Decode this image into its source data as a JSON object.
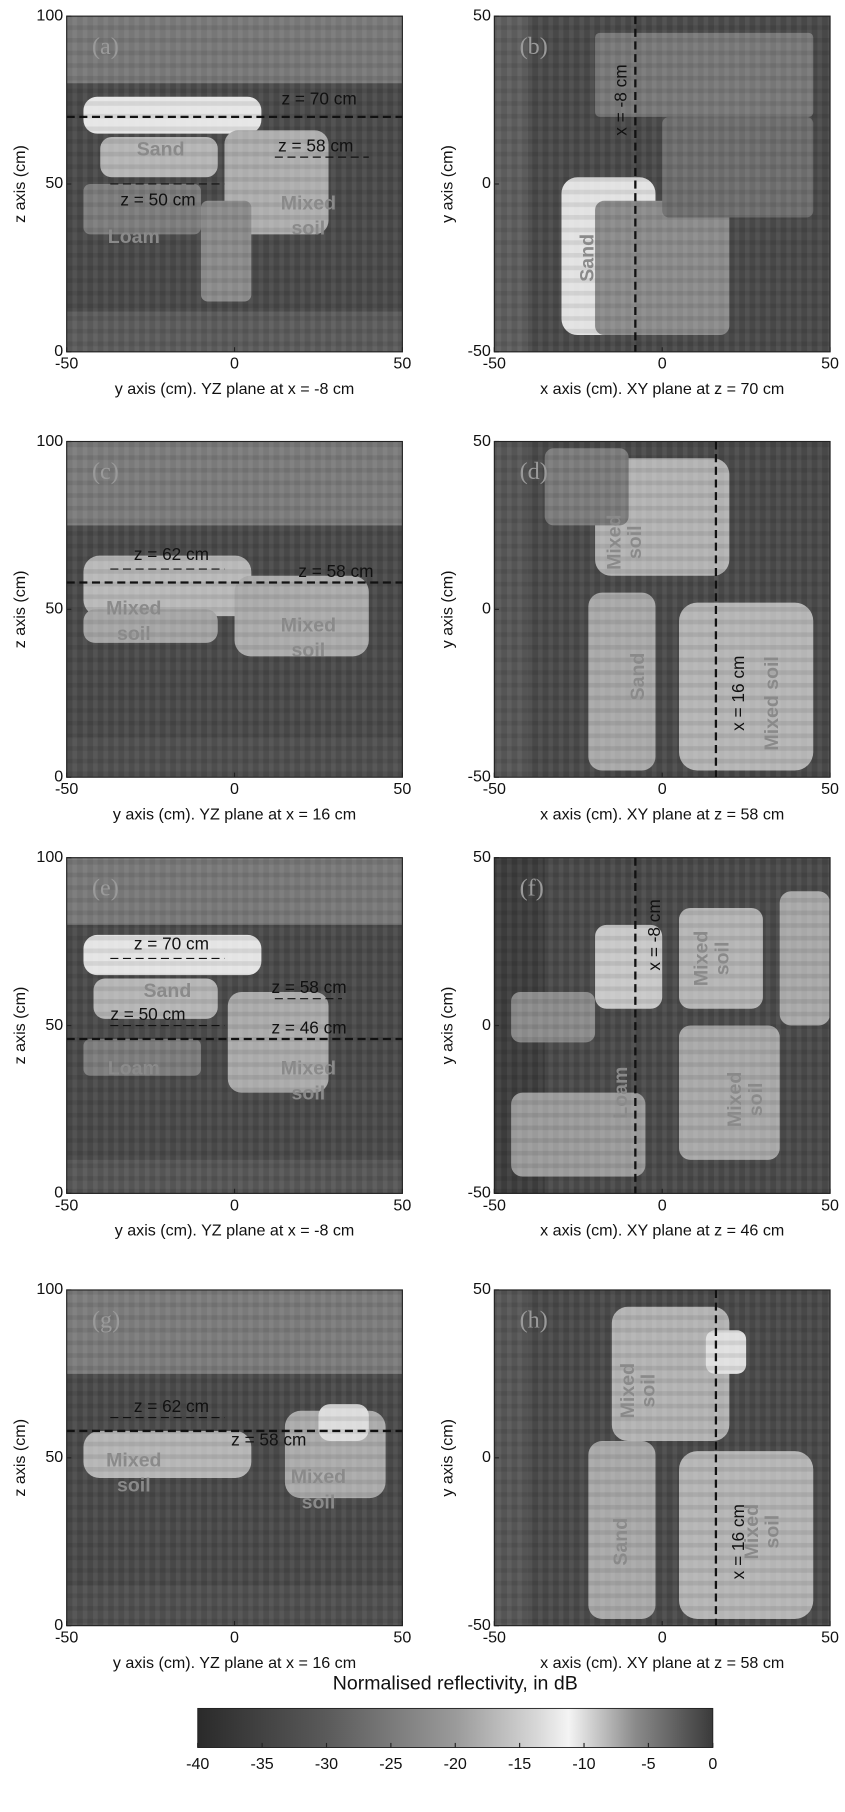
{
  "chart_data": [
    {
      "type": "heatmap",
      "panel_label": "(a)",
      "xlabel": "y axis (cm). YZ plane at x = -8 cm",
      "ylabel": "z axis (cm)",
      "xlim": [
        -50,
        50
      ],
      "ylim": [
        0,
        100
      ],
      "xticks": [
        -50,
        0,
        50
      ],
      "yticks": [
        0,
        50,
        100
      ],
      "hlines": [
        {
          "value": 70,
          "label": "z = 70 cm"
        },
        {
          "value": 58,
          "label": "z = 58 cm"
        },
        {
          "value": 50,
          "label": "z = 50 cm"
        }
      ],
      "regions": [
        [
          "Sand"
        ],
        [
          "Loam"
        ],
        [
          "Mixed",
          "soil"
        ]
      ]
    },
    {
      "type": "heatmap",
      "panel_label": "(b)",
      "xlabel": "x axis (cm). XY plane at z = 70 cm",
      "ylabel": "y axis (cm)",
      "xlim": [
        -50,
        50
      ],
      "ylim": [
        -50,
        50
      ],
      "xticks": [
        -50,
        0,
        50
      ],
      "yticks": [
        -50,
        0,
        50
      ],
      "vlines": [
        {
          "value": -8,
          "label": "x = -8 cm"
        }
      ],
      "regions": [
        [
          "Sand"
        ]
      ]
    },
    {
      "type": "heatmap",
      "panel_label": "(c)",
      "xlabel": "y axis (cm). YZ plane at x = 16 cm",
      "ylabel": "z axis (cm)",
      "xlim": [
        -50,
        50
      ],
      "ylim": [
        0,
        100
      ],
      "xticks": [
        -50,
        0,
        50
      ],
      "yticks": [
        0,
        50,
        100
      ],
      "hlines": [
        {
          "value": 62,
          "label": "z = 62 cm"
        },
        {
          "value": 58,
          "label": "z = 58 cm"
        }
      ],
      "regions": [
        [
          "Mixed",
          "soil"
        ],
        [
          "Mixed",
          "soil"
        ]
      ]
    },
    {
      "type": "heatmap",
      "panel_label": "(d)",
      "xlabel": "x axis (cm). XY plane at z = 58 cm",
      "ylabel": "y axis (cm)",
      "xlim": [
        -50,
        50
      ],
      "ylim": [
        -50,
        50
      ],
      "xticks": [
        -50,
        0,
        50
      ],
      "yticks": [
        -50,
        0,
        50
      ],
      "vlines": [
        {
          "value": 16,
          "label": "x = 16 cm"
        }
      ],
      "regions": [
        [
          "Mixed",
          "soil"
        ],
        [
          "Sand"
        ],
        [
          "Mixed soil"
        ]
      ]
    },
    {
      "type": "heatmap",
      "panel_label": "(e)",
      "xlabel": "y axis (cm). YZ plane at x = -8 cm",
      "ylabel": "z axis (cm)",
      "xlim": [
        -50,
        50
      ],
      "ylim": [
        0,
        100
      ],
      "xticks": [
        -50,
        0,
        50
      ],
      "yticks": [
        0,
        50,
        100
      ],
      "hlines": [
        {
          "value": 70,
          "label": "z = 70 cm"
        },
        {
          "value": 58,
          "label": "z = 58 cm"
        },
        {
          "value": 50,
          "label": "z = 50 cm"
        },
        {
          "value": 46,
          "label": "z = 46 cm"
        }
      ],
      "regions": [
        [
          "Sand"
        ],
        [
          "Loam"
        ],
        [
          "Mixed",
          "soil"
        ]
      ]
    },
    {
      "type": "heatmap",
      "panel_label": "(f)",
      "xlabel": "x axis (cm). XY plane at z = 46 cm",
      "ylabel": "y axis (cm)",
      "xlim": [
        -50,
        50
      ],
      "ylim": [
        -50,
        50
      ],
      "xticks": [
        -50,
        0,
        50
      ],
      "yticks": [
        -50,
        0,
        50
      ],
      "vlines": [
        {
          "value": -8,
          "label": "x = -8 cm"
        }
      ],
      "regions": [
        [
          "Mixed",
          "soil"
        ],
        [
          "Loam"
        ],
        [
          "Mixed",
          "soil"
        ]
      ]
    },
    {
      "type": "heatmap",
      "panel_label": "(g)",
      "xlabel": "y axis (cm). YZ plane at x = 16 cm",
      "ylabel": "z axis (cm)",
      "xlim": [
        -50,
        50
      ],
      "ylim": [
        0,
        100
      ],
      "xticks": [
        -50,
        0,
        50
      ],
      "yticks": [
        0,
        50,
        100
      ],
      "hlines": [
        {
          "value": 62,
          "label": "z = 62 cm"
        },
        {
          "value": 58,
          "label": "z = 58 cm"
        }
      ],
      "regions": [
        [
          "Mixed",
          "soil"
        ],
        [
          "Mixed",
          "soil"
        ]
      ]
    },
    {
      "type": "heatmap",
      "panel_label": "(h)",
      "xlabel": "x axis (cm). XY plane at z = 58 cm",
      "ylabel": "y axis (cm)",
      "xlim": [
        -50,
        50
      ],
      "ylim": [
        -50,
        50
      ],
      "xticks": [
        -50,
        0,
        50
      ],
      "yticks": [
        -50,
        0,
        50
      ],
      "vlines": [
        {
          "value": 16,
          "label": "x = 16 cm"
        }
      ],
      "regions": [
        [
          "Mixed",
          "soil"
        ],
        [
          "Sand"
        ],
        [
          "Mixed",
          "soil"
        ]
      ]
    }
  ],
  "colorbar": {
    "title": "Normalised reflectivity, in dB",
    "clim": [
      -40,
      0
    ],
    "ticks": [
      -40,
      -35,
      -30,
      -25,
      -20,
      -15,
      -10,
      -5,
      0
    ]
  }
}
